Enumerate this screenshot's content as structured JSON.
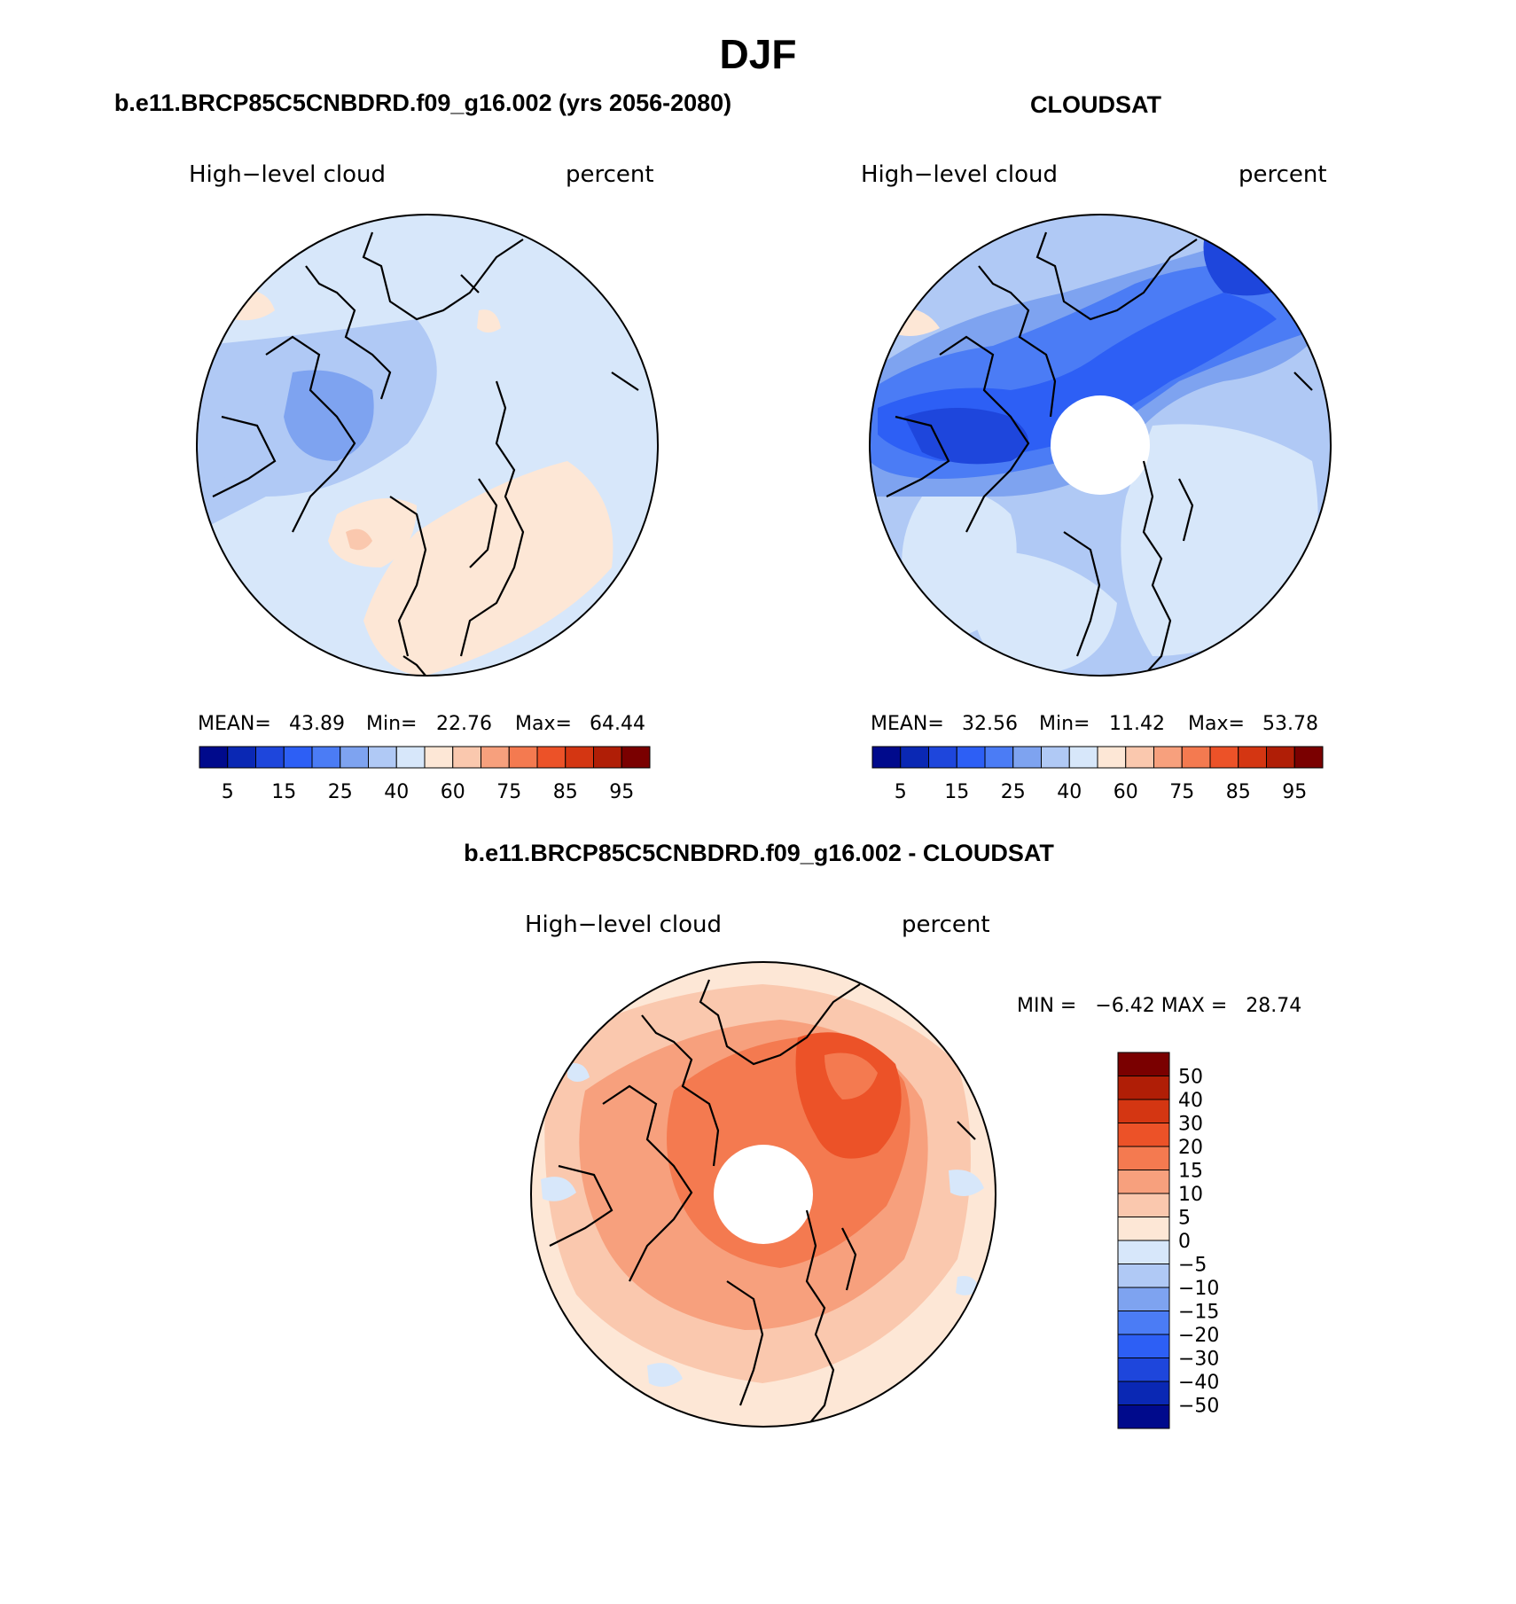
{
  "title": "DJF",
  "panels": [
    {
      "id": "model",
      "heading": "b.e11.BRCP85C5CNBDRD.f09_g16.002 (yrs 2056-2080)",
      "left_label": "High−level cloud",
      "right_label": "percent",
      "stats": {
        "mean_label": "MEAN=",
        "mean": "43.89",
        "min_label": "Min=",
        "min": "22.76",
        "max_label": "Max=",
        "max": "64.44"
      },
      "dominant": "mixed-light",
      "has_pole_hole": false
    },
    {
      "id": "obs",
      "heading": "CLOUDSAT",
      "left_label": "High−level cloud",
      "right_label": "percent",
      "stats": {
        "mean_label": "MEAN=",
        "mean": "32.56",
        "min_label": "Min=",
        "min": "11.42",
        "max_label": "Max=",
        "max": "53.78"
      },
      "dominant": "blue",
      "has_pole_hole": true
    },
    {
      "id": "diff",
      "heading": "b.e11.BRCP85C5CNBDRD.f09_g16.002 - CLOUDSAT",
      "left_label": "High−level cloud",
      "right_label": "percent",
      "stats": {
        "text": "MIN =   −6.42 MAX =   28.74"
      },
      "dominant": "red",
      "has_pole_hole": true
    }
  ],
  "abs_colorbar": {
    "colors": [
      "#000a8c",
      "#0a28b4",
      "#1e46dc",
      "#2d5ff5",
      "#4b7cf5",
      "#7ea3f0",
      "#b0c9f5",
      "#d7e7fa",
      "#fde7d6",
      "#fac8ae",
      "#f7a07d",
      "#f47a50",
      "#ec5228",
      "#d43612",
      "#b01e06",
      "#7a0000"
    ],
    "tick_labels": [
      "5",
      "15",
      "25",
      "40",
      "60",
      "75",
      "85",
      "95"
    ]
  },
  "diff_colorbar": {
    "colors": [
      "#000a8c",
      "#0a28b4",
      "#1e46dc",
      "#2d5ff5",
      "#4b7cf5",
      "#7ea3f0",
      "#b0c9f5",
      "#d7e7fa",
      "#fde7d6",
      "#fac8ae",
      "#f7a07d",
      "#f47a50",
      "#ec5228",
      "#d43612",
      "#b01e06",
      "#7a0000"
    ],
    "labels_top_to_bottom": [
      "50",
      "40",
      "30",
      "20",
      "15",
      "10",
      "5",
      "0",
      "−5",
      "−10",
      "−15",
      "−20",
      "−30",
      "−40",
      "−50"
    ]
  }
}
